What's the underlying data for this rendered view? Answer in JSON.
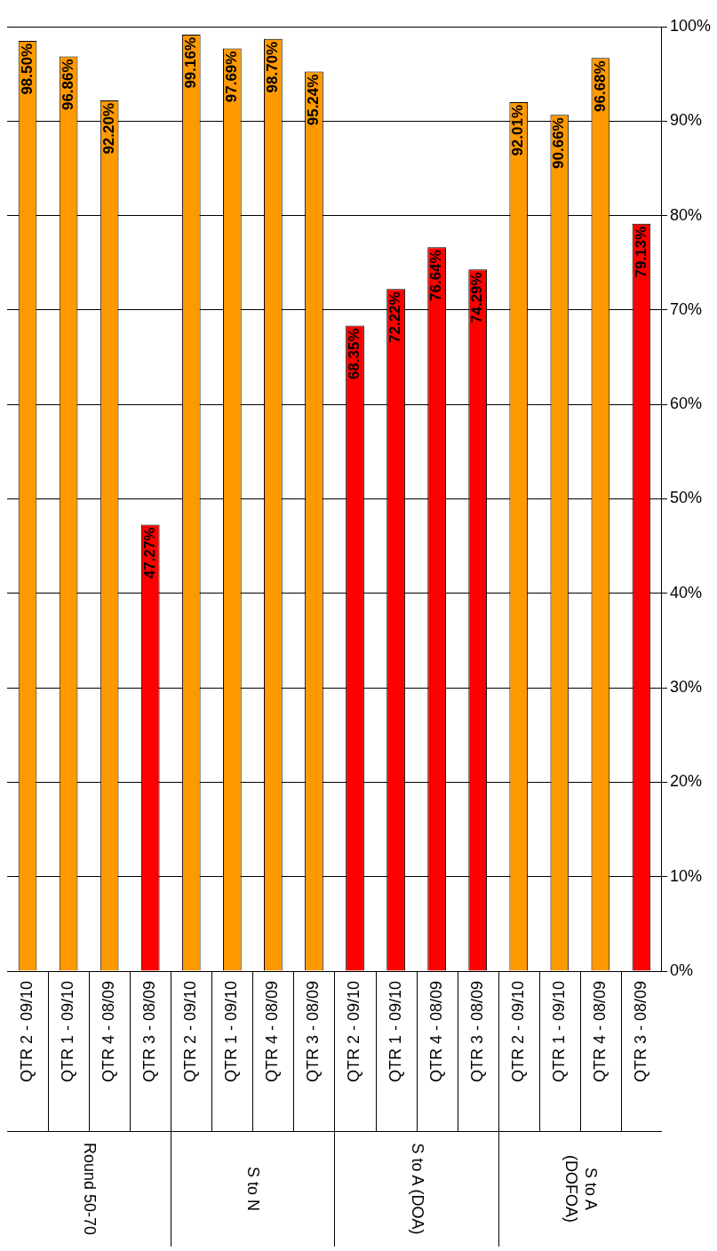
{
  "chart_data": {
    "type": "bar",
    "categories": [
      "QTR 2 - 09/10",
      "QTR 1 - 09/10",
      "QTR 4 - 08/09",
      "QTR 3 - 08/09",
      "QTR 2 - 09/10",
      "QTR 1 - 09/10",
      "QTR 4 - 08/09",
      "QTR 3 - 08/09",
      "QTR 2 - 09/10",
      "QTR 1 - 09/10",
      "QTR 4 - 08/09",
      "QTR 3 - 08/09",
      "QTR 2 - 09/10",
      "QTR 1 - 09/10",
      "QTR 4 - 08/09",
      "QTR 3 - 08/09"
    ],
    "values": [
      98.5,
      96.86,
      92.2,
      47.27,
      99.16,
      97.69,
      98.7,
      95.24,
      68.35,
      72.22,
      76.64,
      74.29,
      92.01,
      90.66,
      96.68,
      79.13
    ],
    "value_labels": [
      "98.50%",
      "96.86%",
      "92.20%",
      "47.27%",
      "99.16%",
      "97.69%",
      "98.70%",
      "95.24%",
      "68.35%",
      "72.22%",
      "76.64%",
      "74.29%",
      "92.01%",
      "90.66%",
      "96.68%",
      "79.13%"
    ],
    "colors": [
      "#ff9900",
      "#ff9900",
      "#ff9900",
      "#ff0000",
      "#ff9900",
      "#ff9900",
      "#ff9900",
      "#ff9900",
      "#ff0000",
      "#ff0000",
      "#ff0000",
      "#ff0000",
      "#ff9900",
      "#ff9900",
      "#ff9900",
      "#ff0000"
    ],
    "annotations": [
      "Round 50-70",
      "S to N",
      "S to A (DOA)",
      "S to A\n(DOFOA)"
    ],
    "ylim": [
      0,
      100
    ],
    "yticks": [
      {
        "value": 0,
        "label": "0%"
      },
      {
        "value": 10,
        "label": "10%"
      },
      {
        "value": 20,
        "label": "20%"
      },
      {
        "value": 30,
        "label": "30%"
      },
      {
        "value": 40,
        "label": "40%"
      },
      {
        "value": 50,
        "label": "50%"
      },
      {
        "value": 60,
        "label": "60%"
      },
      {
        "value": 70,
        "label": "70%"
      },
      {
        "value": 80,
        "label": "80%"
      },
      {
        "value": 90,
        "label": "90%"
      },
      {
        "value": 100,
        "label": "100%"
      }
    ],
    "grid": "y",
    "legend": false
  }
}
